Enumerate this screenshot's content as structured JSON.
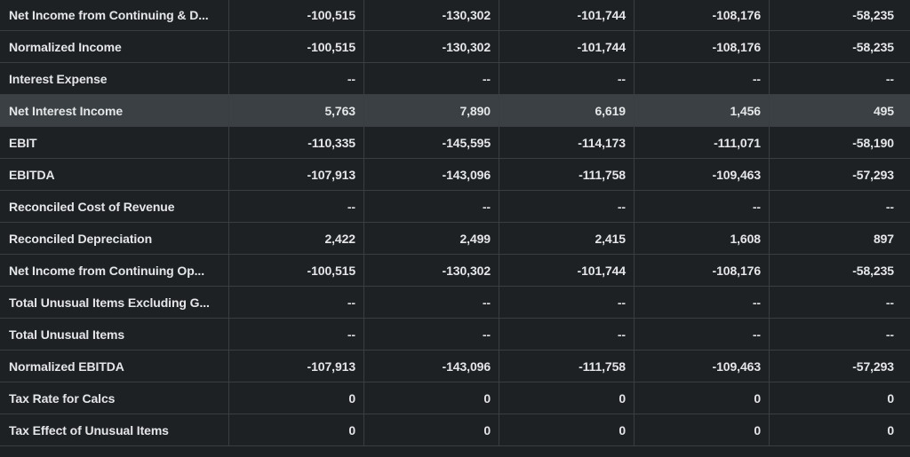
{
  "rows": [
    {
      "label": "Net Income from Continuing & D...",
      "values": [
        "-100,515",
        "-130,302",
        "-101,744",
        "-108,176",
        "-58,235"
      ]
    },
    {
      "label": "Normalized Income",
      "values": [
        "-100,515",
        "-130,302",
        "-101,744",
        "-108,176",
        "-58,235"
      ]
    },
    {
      "label": "Interest Expense",
      "values": [
        "--",
        "--",
        "--",
        "--",
        "--"
      ]
    },
    {
      "label": "Net Interest Income",
      "values": [
        "5,763",
        "7,890",
        "6,619",
        "1,456",
        "495"
      ],
      "highlighted": true
    },
    {
      "label": "EBIT",
      "values": [
        "-110,335",
        "-145,595",
        "-114,173",
        "-111,071",
        "-58,190"
      ]
    },
    {
      "label": "EBITDA",
      "values": [
        "-107,913",
        "-143,096",
        "-111,758",
        "-109,463",
        "-57,293"
      ]
    },
    {
      "label": "Reconciled Cost of Revenue",
      "values": [
        "--",
        "--",
        "--",
        "--",
        "--"
      ]
    },
    {
      "label": "Reconciled Depreciation",
      "values": [
        "2,422",
        "2,499",
        "2,415",
        "1,608",
        "897"
      ]
    },
    {
      "label": "Net Income from Continuing Op...",
      "values": [
        "-100,515",
        "-130,302",
        "-101,744",
        "-108,176",
        "-58,235"
      ]
    },
    {
      "label": "Total Unusual Items Excluding G...",
      "values": [
        "--",
        "--",
        "--",
        "--",
        "--"
      ]
    },
    {
      "label": "Total Unusual Items",
      "values": [
        "--",
        "--",
        "--",
        "--",
        "--"
      ]
    },
    {
      "label": "Normalized EBITDA",
      "values": [
        "-107,913",
        "-143,096",
        "-111,758",
        "-109,463",
        "-57,293"
      ]
    },
    {
      "label": "Tax Rate for Calcs",
      "values": [
        "0",
        "0",
        "0",
        "0",
        "0"
      ]
    },
    {
      "label": "Tax Effect of Unusual Items",
      "values": [
        "0",
        "0",
        "0",
        "0",
        "0"
      ]
    }
  ],
  "colors": {
    "background": "#1e2124",
    "highlight_row": "#3a4043",
    "grid_line": "#3a3e43",
    "text": "#e4e6e8"
  }
}
